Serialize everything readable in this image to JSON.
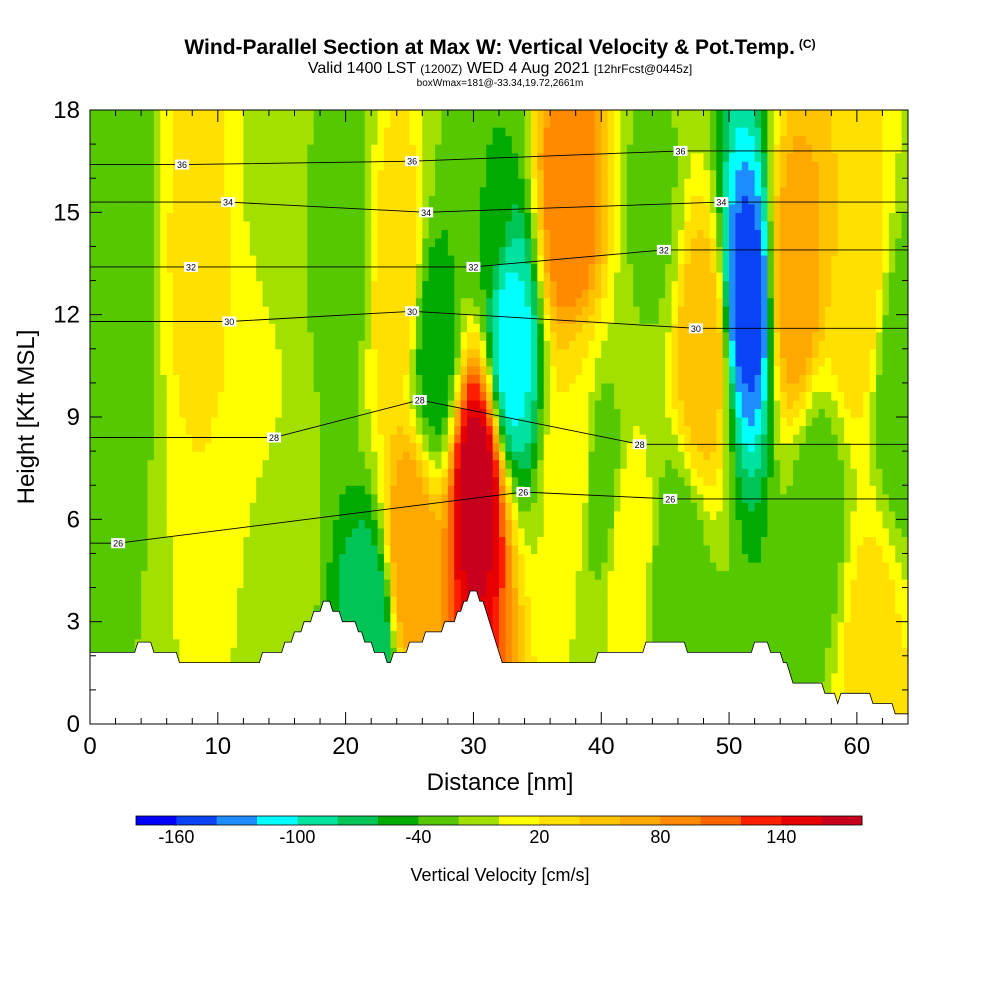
{
  "title": {
    "main": "Wind-Parallel Section at Max W: Vertical Velocity & Pot.Temp.",
    "copyright": "(C)",
    "valid_prefix": "Valid 1400 LST",
    "utc": "(1200Z)",
    "valid_date": "WED 4 Aug 2021",
    "forecast": "[12hrFcst@0445z]",
    "box_info": "boxWmax=181@-33.34,19.72,2661m"
  },
  "chart_data": {
    "type": "heatmap",
    "xlabel": "Distance [nm]",
    "ylabel": "Height [Kft MSL]",
    "xlim": [
      0,
      64
    ],
    "ylim": [
      0,
      18
    ],
    "xticks": [
      0,
      10,
      20,
      30,
      40,
      50,
      60
    ],
    "yticks": [
      0,
      3,
      6,
      9,
      12,
      15,
      18
    ],
    "grid": false,
    "colorbar": {
      "label": "Vertical Velocity [cm/s]",
      "tick_labels": [
        "-160",
        "-100",
        "-40",
        "20",
        "80",
        "140"
      ],
      "tick_values": [
        -160,
        -100,
        -40,
        20,
        80,
        140
      ],
      "range": [
        -180,
        180
      ],
      "bin_width": 20,
      "colors": [
        "#0000ff",
        "#0a42f5",
        "#1e8cff",
        "#00ffff",
        "#00e2a0",
        "#00c455",
        "#00aa00",
        "#56c800",
        "#a2e000",
        "#ffff00",
        "#ffe000",
        "#ffc400",
        "#ffa800",
        "#ff8a00",
        "#ff6400",
        "#ff1e00",
        "#e60000",
        "#c8001e"
      ]
    },
    "vertical_velocity_features": [
      {
        "x": 0.5,
        "z": 11,
        "w": -30
      },
      {
        "x": 2.5,
        "z": 14,
        "w": -40
      },
      {
        "x": 8.5,
        "z": 14,
        "w": 30
      },
      {
        "x": 12,
        "z": 11,
        "w": 20
      },
      {
        "x": 14,
        "z": 15,
        "w": -10
      },
      {
        "x": 14.5,
        "z": 5,
        "w": -5
      },
      {
        "x": 20,
        "z": 14,
        "w": -35
      },
      {
        "x": 22,
        "z": 2.5,
        "w": -80
      },
      {
        "x": 24,
        "z": 13,
        "w": 40
      },
      {
        "x": 25,
        "z": 5,
        "w": 80
      },
      {
        "x": 27,
        "z": 11,
        "w": -55
      },
      {
        "x": 30.3,
        "z": 7,
        "w": 175
      },
      {
        "x": 31,
        "z": 16,
        "w": -40
      },
      {
        "x": 33,
        "z": 11,
        "w": -110
      },
      {
        "x": 37.5,
        "z": 15,
        "w": 100
      },
      {
        "x": 38,
        "z": 8,
        "w": 20
      },
      {
        "x": 40,
        "z": 7,
        "w": -35
      },
      {
        "x": 42,
        "z": 5,
        "w": 15
      },
      {
        "x": 44,
        "z": 15,
        "w": -25
      },
      {
        "x": 46,
        "z": 4,
        "w": -40
      },
      {
        "x": 48,
        "z": 11,
        "w": 60
      },
      {
        "x": 51.5,
        "z": 12.5,
        "w": -155
      },
      {
        "x": 55,
        "z": 13,
        "w": 80
      },
      {
        "x": 57,
        "z": 6,
        "w": -35
      },
      {
        "x": 60,
        "z": 13,
        "w": 40
      },
      {
        "x": 61,
        "z": 2,
        "w": 30
      },
      {
        "x": 63.5,
        "z": 10,
        "w": -40
      }
    ],
    "theta_contour_labels": [
      {
        "text": "36",
        "x": 7.2,
        "z": 16.4
      },
      {
        "text": "34",
        "x": 10.8,
        "z": 15.3
      },
      {
        "text": "32",
        "x": 7.9,
        "z": 13.4
      },
      {
        "text": "30",
        "x": 10.9,
        "z": 11.8
      },
      {
        "text": "28",
        "x": 14.4,
        "z": 8.4
      },
      {
        "text": "26",
        "x": 2.2,
        "z": 5.3
      },
      {
        "text": "36",
        "x": 25.2,
        "z": 16.5
      },
      {
        "text": "34",
        "x": 26.3,
        "z": 15.0
      },
      {
        "text": "32",
        "x": 30.0,
        "z": 13.4
      },
      {
        "text": "30",
        "x": 25.2,
        "z": 12.1
      },
      {
        "text": "28",
        "x": 25.8,
        "z": 9.5
      },
      {
        "text": "26",
        "x": 33.9,
        "z": 6.8
      },
      {
        "text": "36",
        "x": 46.2,
        "z": 16.8
      },
      {
        "text": "34",
        "x": 49.4,
        "z": 15.3
      },
      {
        "text": "32",
        "x": 44.9,
        "z": 13.9
      },
      {
        "text": "30",
        "x": 47.4,
        "z": 11.6
      },
      {
        "text": "28",
        "x": 43.0,
        "z": 8.2
      },
      {
        "text": "26",
        "x": 45.4,
        "z": 6.6
      }
    ],
    "terrain_profile": {
      "x": [
        0,
        4.5,
        8.5,
        14.5,
        16,
        17,
        18.5,
        20,
        21,
        22.5,
        23.5,
        26,
        27,
        28,
        29,
        30,
        31,
        32,
        33,
        38,
        40,
        42,
        45,
        48,
        50,
        51,
        53,
        54,
        55,
        57,
        58.5,
        59.5,
        61.5,
        63.5,
        64
      ],
      "z": [
        2.0,
        2.3,
        1.7,
        2.0,
        2.6,
        3.0,
        3.6,
        3.0,
        2.8,
        2.0,
        1.9,
        2.5,
        2.7,
        2.9,
        3.3,
        3.9,
        3.3,
        2.0,
        1.7,
        1.7,
        2.0,
        2.2,
        2.3,
        2.2,
        2.0,
        2.2,
        2.3,
        2.0,
        1.3,
        1.2,
        0.7,
        1.0,
        0.7,
        0.3,
        0.3
      ]
    }
  }
}
